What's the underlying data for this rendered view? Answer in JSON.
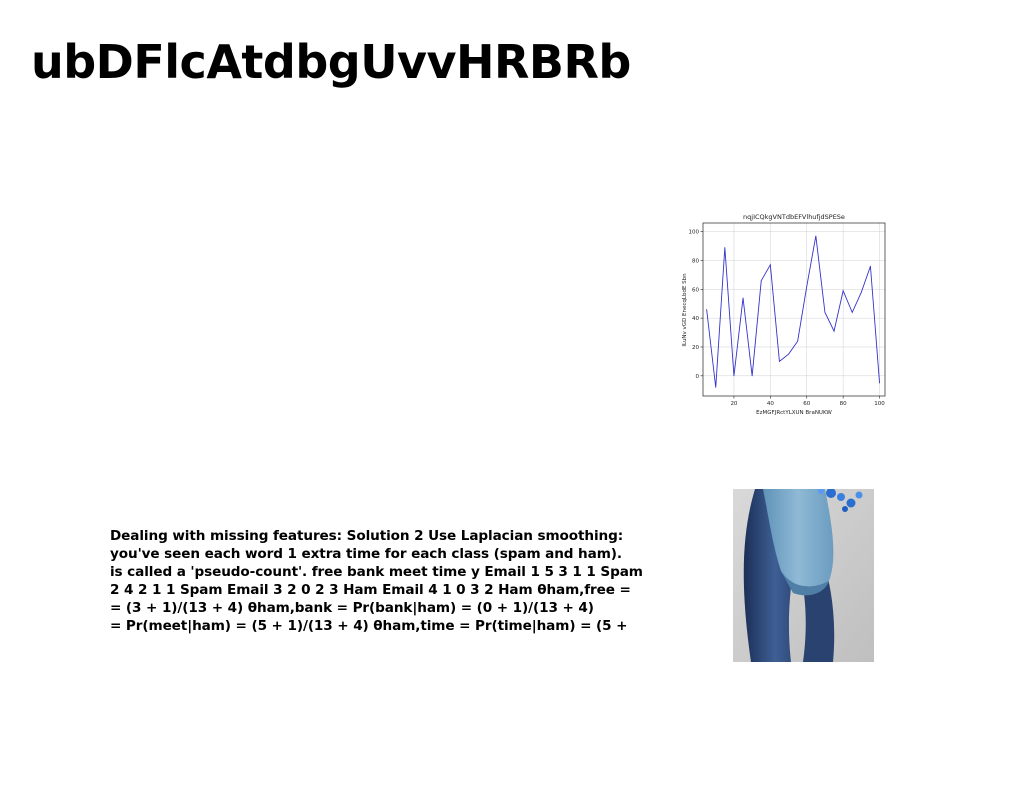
{
  "slide": {
    "title": "ubDFlcAtdbgUvvHRBRb",
    "body_lines": [
      "Dealing with missing features: Solution 2 Use Laplacian smoothing:",
      "you've seen each word 1 extra time for each class (spam and ham).",
      "is called a 'pseudo-count'. free bank meet time y Email 1 5 3 1 1 Spam",
      "2 4 2 1 1 Spam Email 3 2 0 2 3 Ham Email 4 1 0 3 2 Ham θham,free =",
      "= (3 + 1)/(13 + 4) θham,bank = Pr(bank|ham) = (0 + 1)/(13 + 4)",
      "= Pr(meet|ham) = (5 + 1)/(13 + 4) θham,time = Pr(time|ham) = (5 +"
    ]
  },
  "chart_data": {
    "type": "line",
    "title": "nqjICQkgVNTdbEFVlhufjdSPESe",
    "xlabel": "EzMGFJRctYLXUN  BraNUKW",
    "ylabel": "ILuNv vGD EnecqLbdE Sbn",
    "xlim": [
      3,
      103
    ],
    "ylim": [
      -14,
      106
    ],
    "xticks": [
      20,
      40,
      60,
      80,
      100
    ],
    "yticks": [
      0,
      20,
      40,
      60,
      80,
      100
    ],
    "grid": true,
    "line_color": "#3333cc",
    "x": [
      5,
      10,
      15,
      20,
      25,
      30,
      35,
      40,
      45,
      50,
      55,
      60,
      65,
      70,
      75,
      80,
      85,
      90,
      95,
      100
    ],
    "y": [
      46,
      -8,
      89,
      0,
      54,
      0,
      66,
      77,
      10,
      15,
      24,
      62,
      97,
      44,
      31,
      59,
      44,
      58,
      76,
      -5
    ]
  },
  "photo": {
    "description_icon": "person-in-jeans-photo"
  }
}
